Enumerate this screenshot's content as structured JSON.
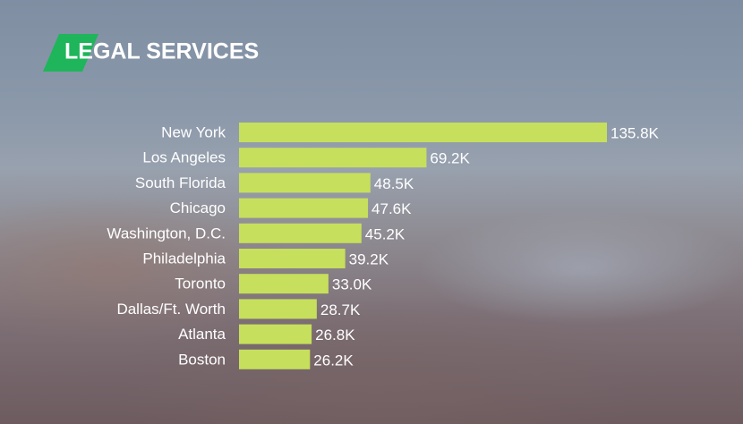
{
  "chart_data": {
    "type": "bar",
    "title": "LEGAL SERVICES",
    "categories": [
      "New York",
      "Los Angeles",
      "South Florida",
      "Chicago",
      "Washington, D.C.",
      "Philadelphia",
      "Toronto",
      "Dallas/Ft. Worth",
      "Atlanta",
      "Boston"
    ],
    "values": [
      135.8,
      69.2,
      48.5,
      47.6,
      45.2,
      39.2,
      33.0,
      28.7,
      26.8,
      26.2
    ],
    "value_labels": [
      "135.8K",
      "69.2K",
      "48.5K",
      "47.6K",
      "45.2K",
      "39.2K",
      "33.0K",
      "28.7K",
      "26.8K",
      "26.2K"
    ],
    "color": "#c6df5c"
  }
}
